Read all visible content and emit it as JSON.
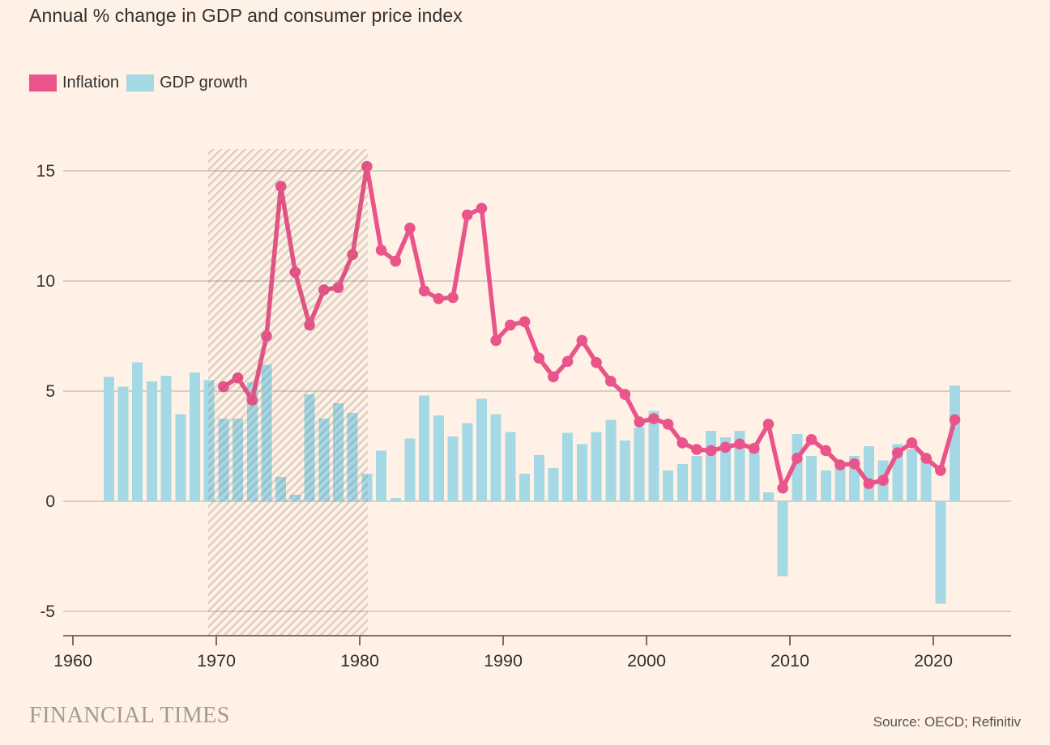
{
  "title": "Annual % change in GDP and consumer price index",
  "legend": {
    "items": [
      {
        "label": "Inflation",
        "color": "#E9558A"
      },
      {
        "label": "GDP growth",
        "color": "#A5D8E5"
      }
    ]
  },
  "footer": {
    "brand": "FINANCIAL TIMES",
    "source": "Source: OECD; Refinitiv"
  },
  "colors": {
    "background": "#FFF1E5",
    "text": "#33302E",
    "gridline": "#CCC3B8",
    "axis": "#66605C",
    "inflation_line": "#E9558A",
    "gdp_bar": "#A5D8E5",
    "hatch_stripe": "rgba(104,86,74,0.22)"
  },
  "chart_data": {
    "type": "combo",
    "title": "Annual % change in GDP and consumer price index",
    "xlabel": "",
    "ylabel": "",
    "ylim": [
      -6.1,
      16
    ],
    "y_ticks": [
      15,
      10,
      5,
      0,
      -5
    ],
    "x_ticks": [
      1960,
      1970,
      1980,
      1990,
      2000,
      2010,
      2020
    ],
    "grid": "horizontal",
    "legend_position": "top-left",
    "shaded_region": {
      "from_year": 1969.5,
      "to_year": 1980.5,
      "style": "diagonal-hatch"
    },
    "series": [
      {
        "name": "GDP growth",
        "type": "bar",
        "color": "#A5D8E5",
        "years": [
          1962,
          1963,
          1964,
          1965,
          1966,
          1967,
          1968,
          1969,
          1970,
          1971,
          1972,
          1973,
          1974,
          1975,
          1976,
          1977,
          1978,
          1979,
          1980,
          1981,
          1982,
          1983,
          1984,
          1985,
          1986,
          1987,
          1988,
          1989,
          1990,
          1991,
          1992,
          1993,
          1994,
          1995,
          1996,
          1997,
          1998,
          1999,
          2000,
          2001,
          2002,
          2003,
          2004,
          2005,
          2006,
          2007,
          2008,
          2009,
          2010,
          2011,
          2012,
          2013,
          2014,
          2015,
          2016,
          2017,
          2018,
          2019,
          2020,
          2021
        ],
        "values": [
          5.65,
          5.2,
          6.3,
          5.45,
          5.7,
          3.95,
          5.85,
          5.5,
          3.75,
          3.75,
          5.4,
          6.2,
          1.1,
          0.3,
          4.85,
          3.75,
          4.45,
          4.0,
          1.25,
          2.3,
          0.15,
          2.85,
          4.8,
          3.9,
          2.95,
          3.55,
          4.65,
          3.95,
          3.15,
          1.25,
          2.1,
          1.5,
          3.1,
          2.6,
          3.15,
          3.7,
          2.75,
          3.35,
          4.1,
          1.4,
          1.7,
          2.05,
          3.2,
          2.9,
          3.2,
          2.6,
          0.4,
          -3.4,
          3.05,
          2.05,
          1.4,
          1.5,
          2.05,
          2.5,
          1.85,
          2.6,
          2.35,
          1.8,
          -4.65,
          5.25
        ]
      },
      {
        "name": "Inflation",
        "type": "line",
        "color": "#E9558A",
        "years": [
          1970,
          1971,
          1972,
          1973,
          1974,
          1975,
          1976,
          1977,
          1978,
          1979,
          1980,
          1981,
          1982,
          1983,
          1984,
          1985,
          1986,
          1987,
          1988,
          1989,
          1990,
          1991,
          1992,
          1993,
          1994,
          1995,
          1996,
          1997,
          1998,
          1999,
          2000,
          2001,
          2002,
          2003,
          2004,
          2005,
          2006,
          2007,
          2008,
          2009,
          2010,
          2011,
          2012,
          2013,
          2014,
          2015,
          2016,
          2017,
          2018,
          2019,
          2020,
          2021
        ],
        "values": [
          5.2,
          5.6,
          4.6,
          7.5,
          14.3,
          10.4,
          8.0,
          9.6,
          9.7,
          11.2,
          15.2,
          11.4,
          10.9,
          12.4,
          9.55,
          9.2,
          9.25,
          13.0,
          13.3,
          7.3,
          8.0,
          8.15,
          6.5,
          5.65,
          6.35,
          7.3,
          6.3,
          5.45,
          4.85,
          3.6,
          3.75,
          3.5,
          2.65,
          2.35,
          2.3,
          2.45,
          2.6,
          2.4,
          3.5,
          0.6,
          1.95,
          2.8,
          2.3,
          1.65,
          1.7,
          0.8,
          0.95,
          2.2,
          2.65,
          1.95,
          1.4,
          3.7
        ]
      }
    ]
  }
}
